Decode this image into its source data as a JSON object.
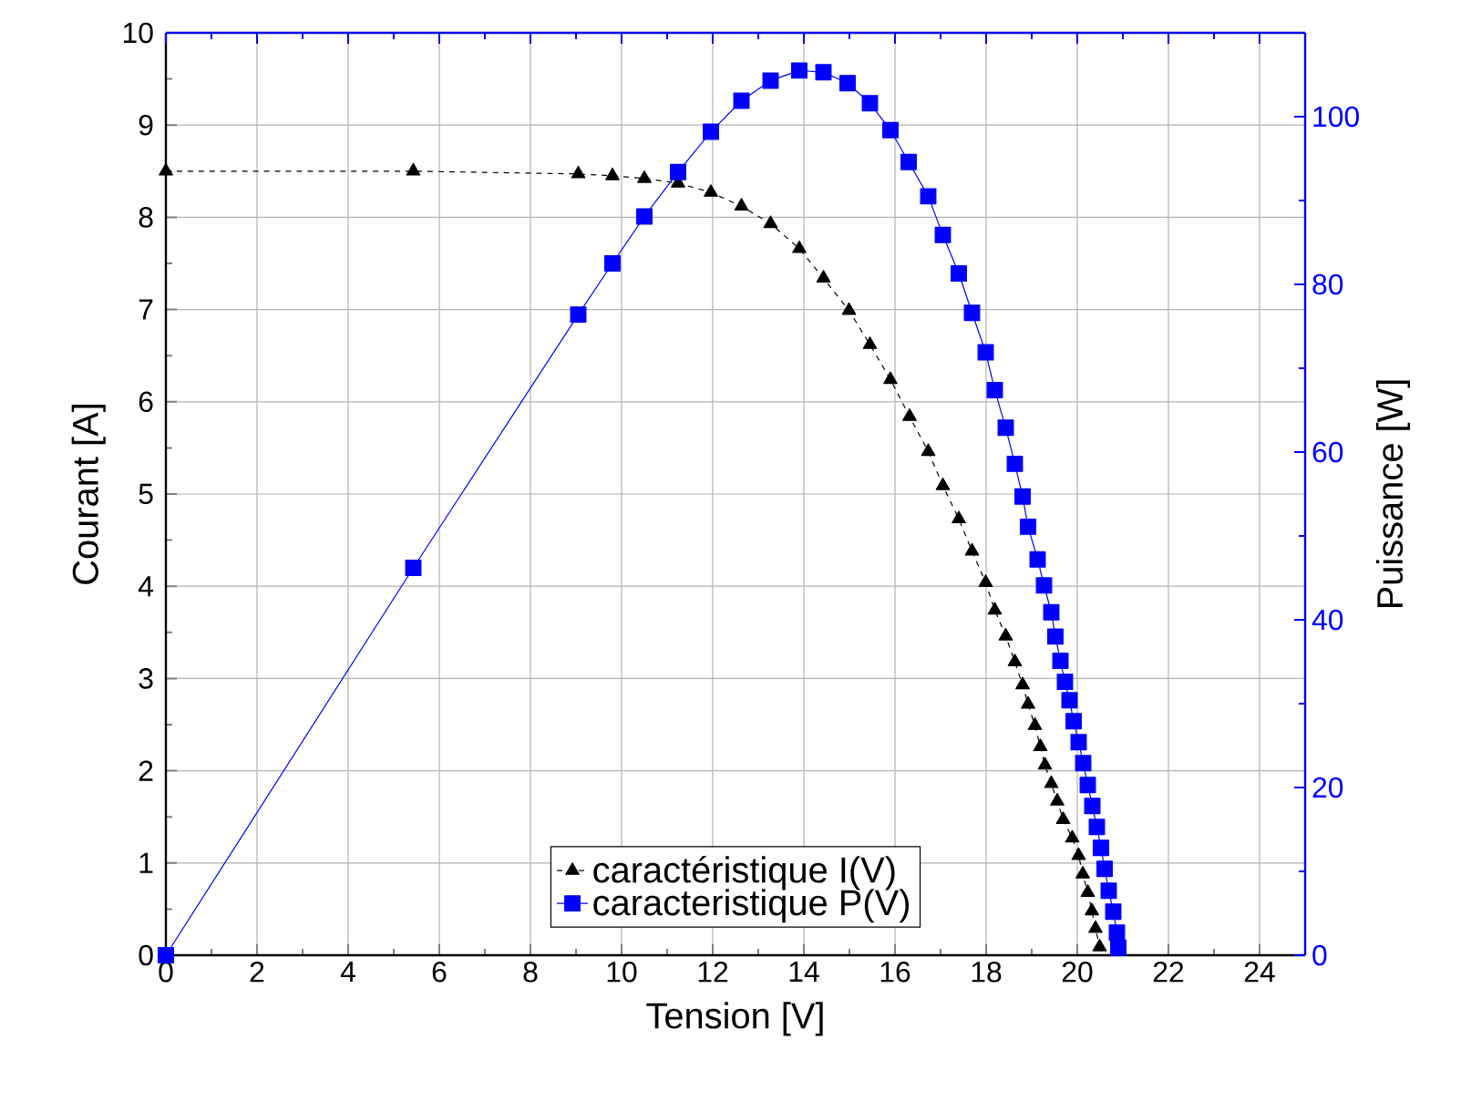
{
  "chart_data": {
    "type": "line",
    "xlabel": "Tension [V]",
    "ylabel": "Courant [A]",
    "y2label": "Puissance [W]",
    "xlim": [
      0,
      25
    ],
    "xticks": [
      0,
      2,
      4,
      6,
      8,
      10,
      12,
      14,
      16,
      18,
      20,
      22,
      24
    ],
    "ylim": [
      0,
      10
    ],
    "yticks": [
      0,
      1,
      2,
      3,
      4,
      5,
      6,
      7,
      8,
      9,
      10
    ],
    "y2lim": [
      0,
      110
    ],
    "y2ticks": [
      0,
      20,
      40,
      60,
      80,
      100
    ],
    "grid": true,
    "legend": "bottom",
    "series": [
      {
        "name": "caractéristique I(V)",
        "color": "#000000",
        "marker": "triangle",
        "line_style": "dashed",
        "x": [
          0,
          5.43,
          9.05,
          9.8,
          10.5,
          11.24,
          11.96,
          12.63,
          13.27,
          13.9,
          14.43,
          14.99,
          15.45,
          15.9,
          16.32,
          16.73,
          17.05,
          17.4,
          17.69,
          17.99,
          18.19,
          18.43,
          18.63,
          18.8,
          18.92,
          19.07,
          19.19,
          19.29,
          19.43,
          19.56,
          19.69,
          19.89,
          20.03,
          20.12,
          20.23,
          20.32,
          20.4,
          20.49
        ],
        "values": [
          8.5,
          8.5,
          8.47,
          8.45,
          8.42,
          8.37,
          8.27,
          8.12,
          7.93,
          7.66,
          7.34,
          6.99,
          6.62,
          6.24,
          5.84,
          5.46,
          5.09,
          4.73,
          4.38,
          4.04,
          3.74,
          3.46,
          3.18,
          2.93,
          2.72,
          2.49,
          2.26,
          2.06,
          1.86,
          1.67,
          1.47,
          1.27,
          1.08,
          0.88,
          0.68,
          0.48,
          0.29,
          0.09
        ]
      },
      {
        "name": "caracteristique P(V)",
        "axis": "y2",
        "color": "#0000ff",
        "marker": "square",
        "line_style": "solid",
        "x": [
          0,
          5.43,
          9.05,
          9.8,
          10.5,
          11.24,
          11.96,
          12.63,
          13.27,
          13.9,
          14.43,
          14.96,
          15.45,
          15.9,
          16.3,
          16.73,
          17.05,
          17.4,
          17.69,
          17.99,
          18.19,
          18.43,
          18.63,
          18.8,
          18.92,
          19.13,
          19.27,
          19.43,
          19.52,
          19.63,
          19.73,
          19.83,
          19.92,
          20.03,
          20.13,
          20.23,
          20.33,
          20.43,
          20.52,
          20.6,
          20.69,
          20.79,
          20.87,
          20.9
        ],
        "values": [
          0,
          46.2,
          76.4,
          82.5,
          88.1,
          93.4,
          98.2,
          101.9,
          104.3,
          105.5,
          105.3,
          104.0,
          101.6,
          98.4,
          94.6,
          90.5,
          85.9,
          81.3,
          76.6,
          71.9,
          67.4,
          62.9,
          58.6,
          54.7,
          51.1,
          47.2,
          44.1,
          40.9,
          38.0,
          35.1,
          32.6,
          30.4,
          27.9,
          25.4,
          22.9,
          20.3,
          17.8,
          15.3,
          12.8,
          10.3,
          7.7,
          5.2,
          2.7,
          0.9
        ]
      }
    ]
  }
}
